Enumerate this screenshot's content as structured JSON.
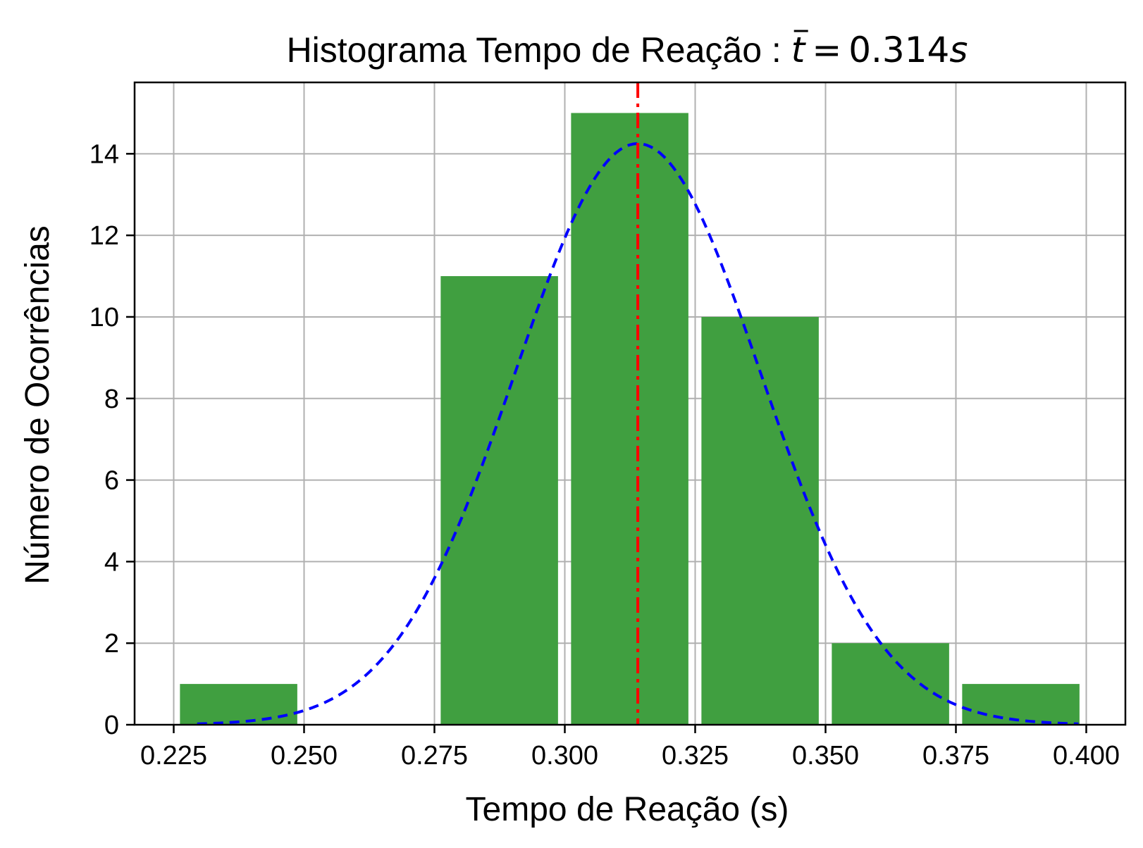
{
  "chart_data": {
    "type": "bar",
    "title": "Histograma Tempo de Reação : ",
    "title_math": {
      "symbol": "t",
      "equals": "=",
      "value": "0.314",
      "unit": "s"
    },
    "xlabel": "Tempo de Reação (s)",
    "ylabel": "Número de Ocorrências",
    "xlim": [
      0.2175,
      0.4075
    ],
    "ylim": [
      0,
      15.75
    ],
    "xticks": [
      0.225,
      0.25,
      0.275,
      0.3,
      0.325,
      0.35,
      0.375,
      0.4
    ],
    "xtick_labels": [
      "0.225",
      "0.250",
      "0.275",
      "0.300",
      "0.325",
      "0.350",
      "0.375",
      "0.400"
    ],
    "yticks": [
      0,
      2,
      4,
      6,
      8,
      10,
      12,
      14
    ],
    "ytick_labels": [
      "0",
      "2",
      "4",
      "6",
      "8",
      "10",
      "12",
      "14"
    ],
    "grid": true,
    "bins": [
      {
        "x_start": 0.2262,
        "x_end": 0.2487,
        "count": 1
      },
      {
        "x_start": 0.2762,
        "x_end": 0.2987,
        "count": 11
      },
      {
        "x_start": 0.3012,
        "x_end": 0.3237,
        "count": 15
      },
      {
        "x_start": 0.3262,
        "x_end": 0.3487,
        "count": 10
      },
      {
        "x_start": 0.3512,
        "x_end": 0.3737,
        "count": 2
      },
      {
        "x_start": 0.3762,
        "x_end": 0.3987,
        "count": 1
      }
    ],
    "normal_fit": {
      "mean": 0.314,
      "sigma": 0.0235,
      "peak": 14.25,
      "x_range": [
        0.2295,
        0.3985
      ]
    },
    "mean_line": 0.314,
    "colors": {
      "bars": "#409f40",
      "fit": "#0000ff",
      "mean": "#ff0000",
      "grid": "#b0b0b0"
    }
  }
}
